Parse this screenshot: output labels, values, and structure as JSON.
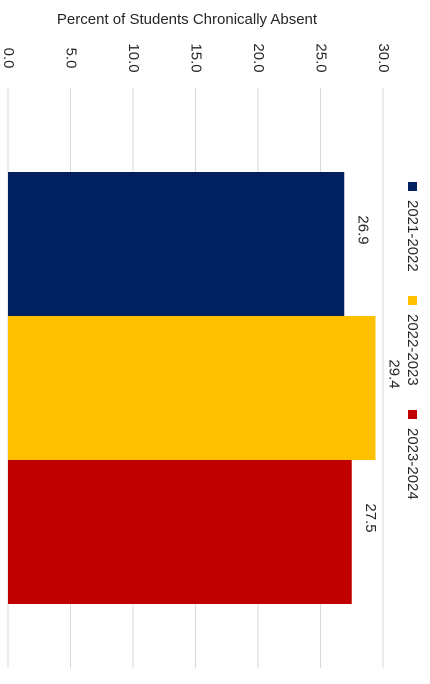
{
  "chart_data": {
    "type": "bar",
    "orientation": "horizontal",
    "rotated": "90-degrees-clockwise",
    "title": "",
    "ylabel": "Percent of Students Chronically Absent",
    "ylim": [
      0,
      30
    ],
    "y_ticks": [
      "0.0",
      "5.0",
      "10.0",
      "15.0",
      "20.0",
      "25.0",
      "30.0"
    ],
    "grid": true,
    "legend_position": "right",
    "series": [
      {
        "name": "2021-2022",
        "value": 26.9,
        "label": "26.9",
        "color": "#002060"
      },
      {
        "name": "2022-2023",
        "value": 29.4,
        "label": "29.4",
        "color": "#FFC000"
      },
      {
        "name": "2023-2024",
        "value": 27.5,
        "label": "27.5",
        "color": "#C00000"
      }
    ]
  }
}
